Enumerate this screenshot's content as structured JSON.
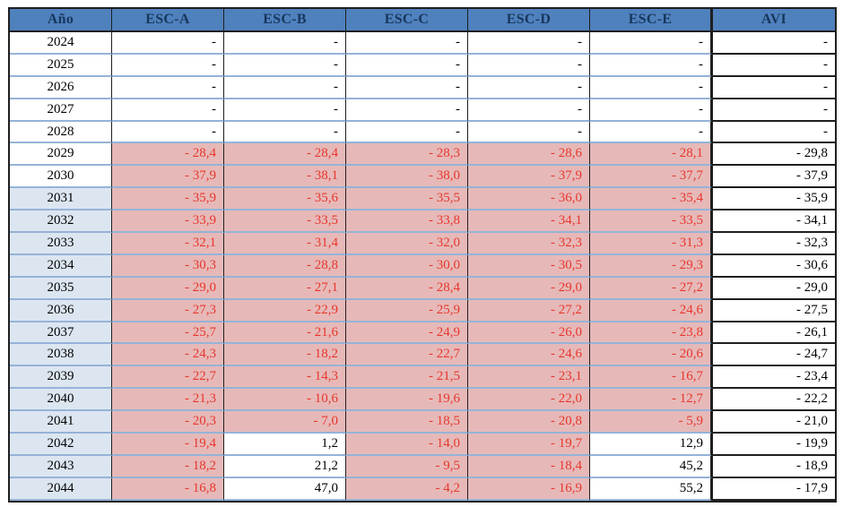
{
  "table": {
    "columns": [
      "Año",
      "ESC-A",
      "ESC-B",
      "ESC-C",
      "ESC-D",
      "ESC-E",
      "AVI"
    ],
    "rows": [
      {
        "year": "2024",
        "year_shaded": false,
        "esc": [
          "-",
          "-",
          "-",
          "-",
          "-"
        ],
        "avi": "-"
      },
      {
        "year": "2025",
        "year_shaded": false,
        "esc": [
          "-",
          "-",
          "-",
          "-",
          "-"
        ],
        "avi": "-"
      },
      {
        "year": "2026",
        "year_shaded": false,
        "esc": [
          "-",
          "-",
          "-",
          "-",
          "-"
        ],
        "avi": "-"
      },
      {
        "year": "2027",
        "year_shaded": false,
        "esc": [
          "-",
          "-",
          "-",
          "-",
          "-"
        ],
        "avi": "-"
      },
      {
        "year": "2028",
        "year_shaded": false,
        "esc": [
          "-",
          "-",
          "-",
          "-",
          "-"
        ],
        "avi": "-"
      },
      {
        "year": "2029",
        "year_shaded": false,
        "esc": [
          "- 28,4",
          "- 28,4",
          "- 28,3",
          "- 28,6",
          "- 28,1"
        ],
        "avi": "- 29,8"
      },
      {
        "year": "2030",
        "year_shaded": false,
        "esc": [
          "- 37,9",
          "- 38,1",
          "- 38,0",
          "- 37,9",
          "- 37,7"
        ],
        "avi": "- 37,9"
      },
      {
        "year": "2031",
        "year_shaded": true,
        "esc": [
          "- 35,9",
          "- 35,6",
          "- 35,5",
          "- 36,0",
          "- 35,4"
        ],
        "avi": "- 35,9"
      },
      {
        "year": "2032",
        "year_shaded": true,
        "esc": [
          "- 33,9",
          "- 33,5",
          "- 33,8",
          "- 34,1",
          "- 33,5"
        ],
        "avi": "- 34,1"
      },
      {
        "year": "2033",
        "year_shaded": true,
        "esc": [
          "- 32,1",
          "- 31,4",
          "- 32,0",
          "- 32,3",
          "- 31,3"
        ],
        "avi": "- 32,3"
      },
      {
        "year": "2034",
        "year_shaded": true,
        "esc": [
          "- 30,3",
          "- 28,8",
          "- 30,0",
          "- 30,5",
          "- 29,3"
        ],
        "avi": "- 30,6"
      },
      {
        "year": "2035",
        "year_shaded": true,
        "esc": [
          "- 29,0",
          "- 27,1",
          "- 28,4",
          "- 29,0",
          "- 27,2"
        ],
        "avi": "- 29,0"
      },
      {
        "year": "2036",
        "year_shaded": true,
        "esc": [
          "- 27,3",
          "- 22,9",
          "- 25,9",
          "- 27,2",
          "- 24,6"
        ],
        "avi": "- 27,5"
      },
      {
        "year": "2037",
        "year_shaded": true,
        "esc": [
          "- 25,7",
          "- 21,6",
          "- 24,9",
          "- 26,0",
          "- 23,8"
        ],
        "avi": "- 26,1"
      },
      {
        "year": "2038",
        "year_shaded": true,
        "esc": [
          "- 24,3",
          "- 18,2",
          "- 22,7",
          "- 24,6",
          "- 20,6"
        ],
        "avi": "- 24,7"
      },
      {
        "year": "2039",
        "year_shaded": true,
        "esc": [
          "- 22,7",
          "- 14,3",
          "- 21,5",
          "- 23,1",
          "- 16,7"
        ],
        "avi": "- 23,4"
      },
      {
        "year": "2040",
        "year_shaded": true,
        "esc": [
          "- 21,3",
          "- 10,6",
          "- 19,6",
          "- 22,0",
          "- 12,7"
        ],
        "avi": "- 22,2"
      },
      {
        "year": "2041",
        "year_shaded": true,
        "esc": [
          "- 20,3",
          "- 7,0",
          "- 18,5",
          "- 20,8",
          "- 5,9"
        ],
        "avi": "- 21,0"
      },
      {
        "year": "2042",
        "year_shaded": true,
        "esc": [
          "- 19,4",
          "1,2",
          "- 14,0",
          "- 19,7",
          "12,9"
        ],
        "avi": "- 19,9"
      },
      {
        "year": "2043",
        "year_shaded": true,
        "esc": [
          "- 18,2",
          "21,2",
          "- 9,5",
          "- 18,4",
          "45,2"
        ],
        "avi": "- 18,9"
      },
      {
        "year": "2044",
        "year_shaded": true,
        "esc": [
          "- 16,8",
          "47,0",
          "- 4,2",
          "- 16,9",
          "55,2"
        ],
        "avi": "- 17,9"
      }
    ]
  },
  "colors": {
    "header_bg": "#4f81bd",
    "header_text": "#17375e",
    "row_separator": "#95b3d7",
    "year_shaded_bg": "#dce6f1",
    "negative_bg": "#e6b9b8",
    "negative_text": "#e8362c",
    "positive_text": "#000000",
    "border_dark": "#1f1f1f"
  }
}
